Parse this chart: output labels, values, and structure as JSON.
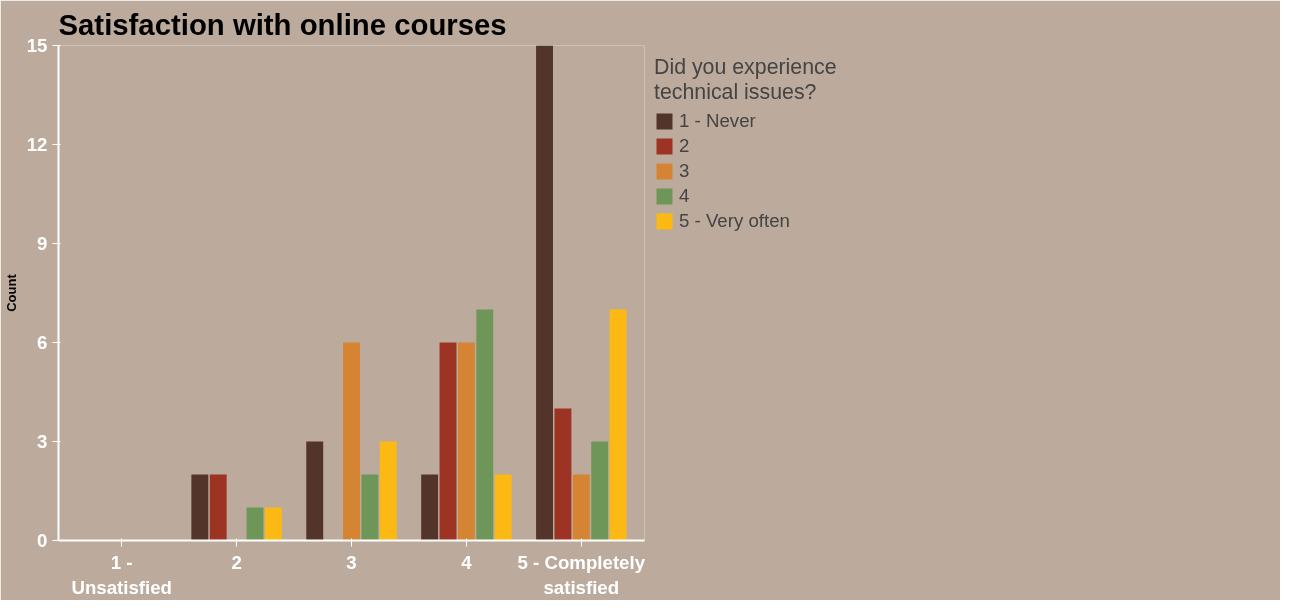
{
  "chart_data": {
    "type": "bar",
    "title": "Satisfaction with online courses",
    "ylabel": "Count",
    "legend_title": "Did you experience technical issues?",
    "categories": [
      "1 - Unsatisfied",
      "2",
      "3",
      "4",
      "5 - Completely satisfied"
    ],
    "series": [
      {
        "name": "1 - Never",
        "color": "#53342a",
        "values": [
          0,
          2,
          3,
          2,
          15
        ]
      },
      {
        "name": "2",
        "color": "#9c3323",
        "values": [
          0,
          2,
          0,
          6,
          4
        ]
      },
      {
        "name": "3",
        "color": "#d58433",
        "values": [
          0,
          0,
          6,
          6,
          2
        ]
      },
      {
        "name": "4",
        "color": "#6f9659",
        "values": [
          0,
          1,
          2,
          7,
          3
        ]
      },
      {
        "name": "5 - Very often",
        "color": "#fdb913",
        "values": [
          0,
          1,
          3,
          2,
          7
        ]
      }
    ],
    "ylim": [
      0,
      15
    ],
    "yticks": [
      0,
      3,
      6,
      9,
      12,
      15
    ],
    "grid": false,
    "legend": "top right"
  }
}
